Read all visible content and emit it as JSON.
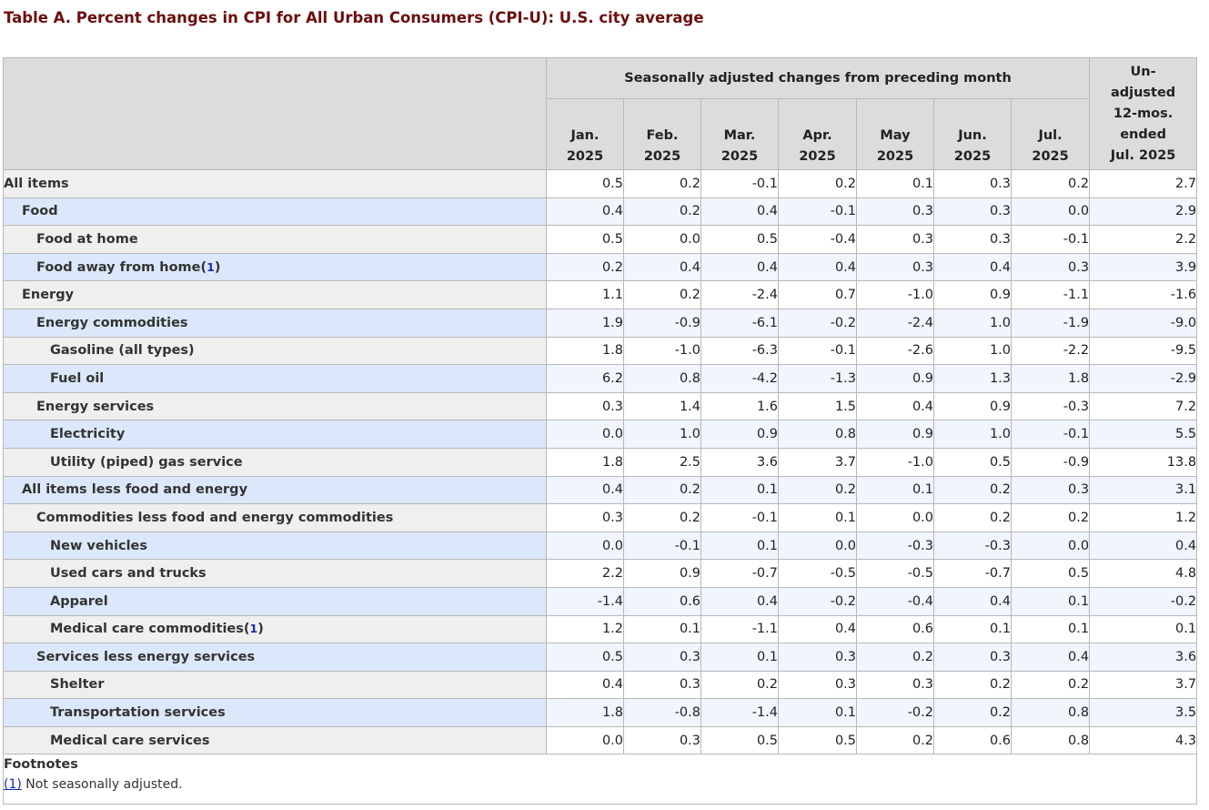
{
  "title": "Table A. Percent changes in CPI for All Urban Consumers (CPI-U): U.S. city average",
  "header": {
    "seasonal_label": "Seasonally adjusted changes from preceding month",
    "months": [
      {
        "line1": "Jan.",
        "line2": "2025"
      },
      {
        "line1": "Feb.",
        "line2": "2025"
      },
      {
        "line1": "Mar.",
        "line2": "2025"
      },
      {
        "line1": "Apr.",
        "line2": "2025"
      },
      {
        "line1": "May",
        "line2": "2025"
      },
      {
        "line1": "Jun.",
        "line2": "2025"
      },
      {
        "line1": "Jul.",
        "line2": "2025"
      }
    ],
    "unadjusted": [
      "Un-",
      "adjusted",
      "12-mos.",
      "ended",
      "Jul. 2025"
    ]
  },
  "rows": [
    {
      "label": "All items",
      "indent": 0,
      "footnote": "",
      "values": [
        "0.5",
        "0.2",
        "-0.1",
        "0.2",
        "0.1",
        "0.3",
        "0.2",
        "2.7"
      ]
    },
    {
      "label": "Food",
      "indent": 1,
      "footnote": "",
      "values": [
        "0.4",
        "0.2",
        "0.4",
        "-0.1",
        "0.3",
        "0.3",
        "0.0",
        "2.9"
      ]
    },
    {
      "label": "Food at home",
      "indent": 2,
      "footnote": "",
      "values": [
        "0.5",
        "0.0",
        "0.5",
        "-0.4",
        "0.3",
        "0.3",
        "-0.1",
        "2.2"
      ]
    },
    {
      "label": "Food away from home",
      "indent": 2,
      "footnote": "1",
      "values": [
        "0.2",
        "0.4",
        "0.4",
        "0.4",
        "0.3",
        "0.4",
        "0.3",
        "3.9"
      ]
    },
    {
      "label": "Energy",
      "indent": 1,
      "footnote": "",
      "values": [
        "1.1",
        "0.2",
        "-2.4",
        "0.7",
        "-1.0",
        "0.9",
        "-1.1",
        "-1.6"
      ]
    },
    {
      "label": "Energy commodities",
      "indent": 2,
      "footnote": "",
      "values": [
        "1.9",
        "-0.9",
        "-6.1",
        "-0.2",
        "-2.4",
        "1.0",
        "-1.9",
        "-9.0"
      ]
    },
    {
      "label": "Gasoline (all types)",
      "indent": 3,
      "footnote": "",
      "values": [
        "1.8",
        "-1.0",
        "-6.3",
        "-0.1",
        "-2.6",
        "1.0",
        "-2.2",
        "-9.5"
      ]
    },
    {
      "label": "Fuel oil",
      "indent": 3,
      "footnote": "",
      "values": [
        "6.2",
        "0.8",
        "-4.2",
        "-1.3",
        "0.9",
        "1.3",
        "1.8",
        "-2.9"
      ]
    },
    {
      "label": "Energy services",
      "indent": 2,
      "footnote": "",
      "values": [
        "0.3",
        "1.4",
        "1.6",
        "1.5",
        "0.4",
        "0.9",
        "-0.3",
        "7.2"
      ]
    },
    {
      "label": "Electricity",
      "indent": 3,
      "footnote": "",
      "values": [
        "0.0",
        "1.0",
        "0.9",
        "0.8",
        "0.9",
        "1.0",
        "-0.1",
        "5.5"
      ]
    },
    {
      "label": "Utility (piped) gas service",
      "indent": 3,
      "footnote": "",
      "values": [
        "1.8",
        "2.5",
        "3.6",
        "3.7",
        "-1.0",
        "0.5",
        "-0.9",
        "13.8"
      ]
    },
    {
      "label": "All items less food and energy",
      "indent": 1,
      "footnote": "",
      "values": [
        "0.4",
        "0.2",
        "0.1",
        "0.2",
        "0.1",
        "0.2",
        "0.3",
        "3.1"
      ]
    },
    {
      "label": "Commodities less food and energy commodities",
      "indent": 2,
      "footnote": "",
      "values": [
        "0.3",
        "0.2",
        "-0.1",
        "0.1",
        "0.0",
        "0.2",
        "0.2",
        "1.2"
      ]
    },
    {
      "label": "New vehicles",
      "indent": 3,
      "footnote": "",
      "values": [
        "0.0",
        "-0.1",
        "0.1",
        "0.0",
        "-0.3",
        "-0.3",
        "0.0",
        "0.4"
      ]
    },
    {
      "label": "Used cars and trucks",
      "indent": 3,
      "footnote": "",
      "values": [
        "2.2",
        "0.9",
        "-0.7",
        "-0.5",
        "-0.5",
        "-0.7",
        "0.5",
        "4.8"
      ]
    },
    {
      "label": "Apparel",
      "indent": 3,
      "footnote": "",
      "values": [
        "-1.4",
        "0.6",
        "0.4",
        "-0.2",
        "-0.4",
        "0.4",
        "0.1",
        "-0.2"
      ]
    },
    {
      "label": "Medical care commodities",
      "indent": 3,
      "footnote": "1",
      "values": [
        "1.2",
        "0.1",
        "-1.1",
        "0.4",
        "0.6",
        "0.1",
        "0.1",
        "0.1"
      ]
    },
    {
      "label": "Services less energy services",
      "indent": 2,
      "footnote": "",
      "values": [
        "0.5",
        "0.3",
        "0.1",
        "0.3",
        "0.2",
        "0.3",
        "0.4",
        "3.6"
      ]
    },
    {
      "label": "Shelter",
      "indent": 3,
      "footnote": "",
      "values": [
        "0.4",
        "0.3",
        "0.2",
        "0.3",
        "0.3",
        "0.2",
        "0.2",
        "3.7"
      ]
    },
    {
      "label": "Transportation services",
      "indent": 3,
      "footnote": "",
      "values": [
        "1.8",
        "-0.8",
        "-1.4",
        "0.1",
        "-0.2",
        "0.2",
        "0.8",
        "3.5"
      ]
    },
    {
      "label": "Medical care services",
      "indent": 3,
      "footnote": "",
      "values": [
        "0.0",
        "0.3",
        "0.5",
        "0.5",
        "0.2",
        "0.6",
        "0.8",
        "4.3"
      ]
    }
  ],
  "footnotes": {
    "title": "Footnotes",
    "items": [
      {
        "marker": "(1)",
        "text": " Not seasonally adjusted."
      }
    ]
  }
}
